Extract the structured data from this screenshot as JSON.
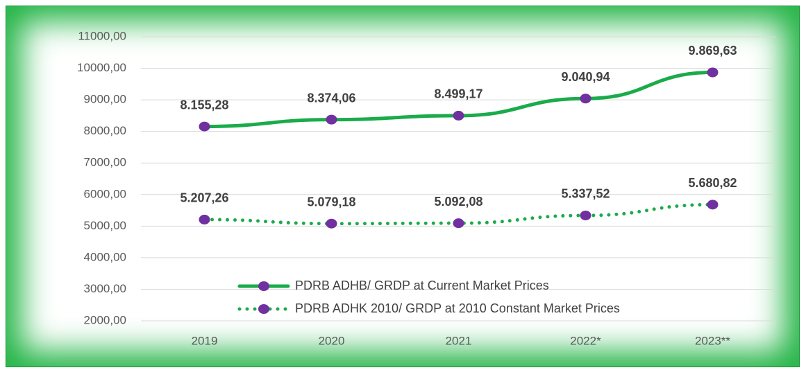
{
  "chart_data": {
    "type": "line",
    "categories": [
      "2019",
      "2020",
      "2021",
      "2022*",
      "2023**"
    ],
    "series": [
      {
        "name": "PDRB ADHB/ GRDP at Current Market Prices",
        "color": "#1aab4a",
        "marker_color": "#7030a0",
        "line_style": "solid",
        "values": [
          8155.28,
          8374.06,
          8499.17,
          9040.94,
          9869.63
        ],
        "value_labels": [
          "8.155,28",
          "8.374,06",
          "8.499,17",
          "9.040,94",
          "9.869,63"
        ]
      },
      {
        "name": "PDRB ADHK 2010/ GRDP at 2010 Constant Market Prices",
        "color": "#1aab4a",
        "marker_color": "#7030a0",
        "line_style": "dotted",
        "values": [
          5207.26,
          5079.18,
          5092.08,
          5337.52,
          5680.82
        ],
        "value_labels": [
          "5.207,26",
          "5.079,18",
          "5.092,08",
          "5.337,52",
          "5.680,82"
        ]
      }
    ],
    "ylim": [
      2000,
      11000
    ],
    "yticks": [
      {
        "value": 2000,
        "label": "2000,00"
      },
      {
        "value": 3000,
        "label": "3000,00"
      },
      {
        "value": 4000,
        "label": "4000,00"
      },
      {
        "value": 5000,
        "label": "5000,00"
      },
      {
        "value": 6000,
        "label": "6000,00"
      },
      {
        "value": 7000,
        "label": "7000,00"
      },
      {
        "value": 8000,
        "label": "8000,00"
      },
      {
        "value": 9000,
        "label": "9000,00"
      },
      {
        "value": 10000,
        "label": "10000,00"
      },
      {
        "value": 11000,
        "label": "11000,00"
      }
    ],
    "grid": true,
    "legend": "lower center"
  }
}
